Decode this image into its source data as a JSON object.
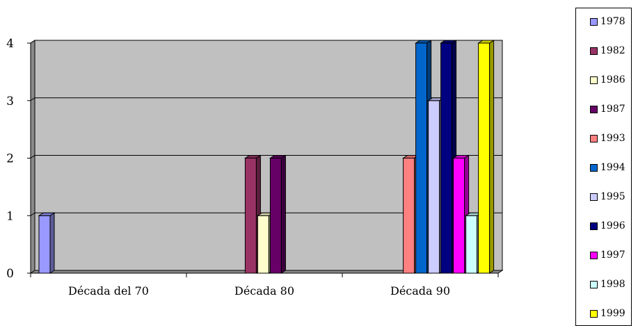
{
  "chart_data": {
    "type": "bar",
    "categories": [
      "Década del 70",
      "Década 80",
      "Década 90"
    ],
    "series": [
      {
        "name": "1978",
        "color": "#9999FF",
        "values": [
          1,
          0,
          0
        ]
      },
      {
        "name": "1982",
        "color": "#993366",
        "values": [
          0,
          2,
          0
        ]
      },
      {
        "name": "1986",
        "color": "#FFFFCC",
        "values": [
          0,
          1,
          0
        ]
      },
      {
        "name": "1987",
        "color": "#660066",
        "values": [
          0,
          2,
          0
        ]
      },
      {
        "name": "1993",
        "color": "#FF8080",
        "values": [
          0,
          0,
          2
        ]
      },
      {
        "name": "1994",
        "color": "#0066CC",
        "values": [
          0,
          0,
          4
        ]
      },
      {
        "name": "1995",
        "color": "#CCCCFF",
        "values": [
          0,
          0,
          3
        ]
      },
      {
        "name": "1996",
        "color": "#000080",
        "values": [
          0,
          0,
          4
        ]
      },
      {
        "name": "1997",
        "color": "#FF00FF",
        "values": [
          0,
          0,
          2
        ]
      },
      {
        "name": "1998",
        "color": "#CCFFFF",
        "values": [
          0,
          0,
          1
        ]
      },
      {
        "name": "1999",
        "color": "#FFFF00",
        "values": [
          0,
          0,
          4
        ]
      }
    ],
    "y_ticks": [
      "0",
      "1",
      "2",
      "3",
      "4"
    ],
    "ylim": [
      0,
      4
    ],
    "grid": true,
    "legend_position": "right",
    "plot_background": "#C0C0C0"
  }
}
